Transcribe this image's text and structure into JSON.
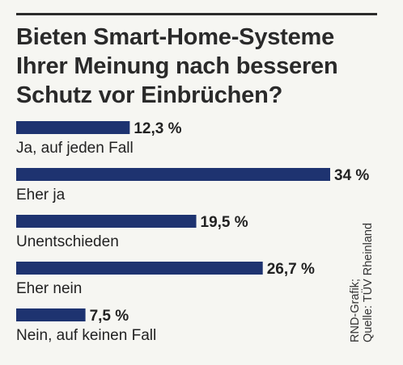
{
  "title": "Bieten Smart-Home-Systeme Ihrer Meinung nach besseren Schutz vor Einbrüchen?",
  "colors": {
    "bar": "#1e3370",
    "text": "#222222",
    "background": "#f6f6f2"
  },
  "chart_data": {
    "type": "bar",
    "orientation": "horizontal",
    "title": "Bieten Smart-Home-Systeme Ihrer Meinung nach besseren Schutz vor Einbrüchen?",
    "categories": [
      "Ja, auf jeden Fall",
      "Eher ja",
      "Unentschieden",
      "Eher nein",
      "Nein, auf keinen Fall"
    ],
    "values": [
      12.3,
      34,
      19.5,
      26.7,
      7.5
    ],
    "value_labels": [
      "12,3 %",
      "34 %",
      "19,5 %",
      "26,7 %",
      "7,5 %"
    ],
    "unit": "%",
    "xlim": [
      0,
      34
    ],
    "grid": false,
    "legend": "none"
  },
  "source": {
    "line1": "RND-Grafik;",
    "line2": "Quelle: TÜV Rheinland"
  }
}
